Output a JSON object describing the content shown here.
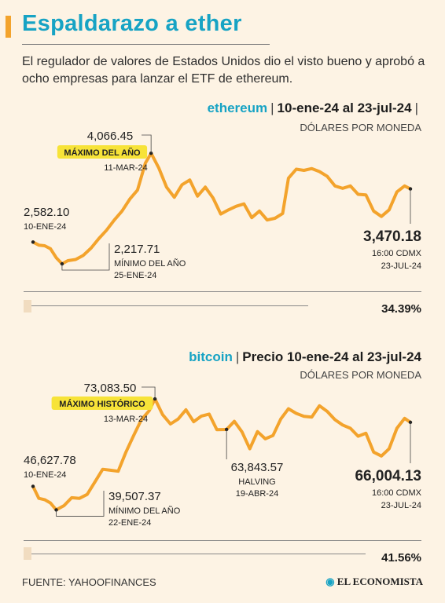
{
  "title": "Espaldarazo a ether",
  "subtitle": "El regulador de valores de Estados Unidos dio el visto bueno y aprobó a ocho empresas para lanzar el ETF de ethereum.",
  "footer": "FUENTE: YAHOOFINANCES",
  "brand": "EL ECONOMISTA",
  "colors": {
    "accent": "#17a3c4",
    "line": "#f3a32c",
    "highlight": "#f7e338"
  },
  "chart_data": [
    {
      "type": "line",
      "asset": "ethereum",
      "period": "10-ene-24 al 23-jul-24",
      "units": "DÓLARES POR MONEDA",
      "x_range": [
        "2024-01-10",
        "2024-07-23"
      ],
      "ylim": [
        2100,
        4200
      ],
      "x": [
        "2024-01-10",
        "2024-01-13",
        "2024-01-16",
        "2024-01-19",
        "2024-01-22",
        "2024-01-25",
        "2024-01-28",
        "2024-02-01",
        "2024-02-05",
        "2024-02-09",
        "2024-02-13",
        "2024-02-17",
        "2024-02-21",
        "2024-02-25",
        "2024-02-29",
        "2024-03-04",
        "2024-03-08",
        "2024-03-11",
        "2024-03-15",
        "2024-03-19",
        "2024-03-23",
        "2024-03-27",
        "2024-03-31",
        "2024-04-04",
        "2024-04-08",
        "2024-04-12",
        "2024-04-16",
        "2024-04-20",
        "2024-04-24",
        "2024-04-28",
        "2024-05-02",
        "2024-05-06",
        "2024-05-10",
        "2024-05-14",
        "2024-05-18",
        "2024-05-21",
        "2024-05-25",
        "2024-05-29",
        "2024-06-02",
        "2024-06-06",
        "2024-06-10",
        "2024-06-14",
        "2024-06-18",
        "2024-06-22",
        "2024-06-26",
        "2024-06-30",
        "2024-07-04",
        "2024-07-08",
        "2024-07-12",
        "2024-07-16",
        "2024-07-20",
        "2024-07-23"
      ],
      "values": [
        2582.1,
        2530,
        2520,
        2470,
        2320,
        2217.71,
        2270,
        2290,
        2360,
        2480,
        2640,
        2780,
        2950,
        3100,
        3300,
        3450,
        3900,
        4066.45,
        3820,
        3500,
        3330,
        3540,
        3620,
        3350,
        3500,
        3320,
        3050,
        3120,
        3180,
        3220,
        2990,
        3100,
        2950,
        2980,
        3060,
        3650,
        3800,
        3780,
        3810,
        3760,
        3680,
        3520,
        3480,
        3520,
        3380,
        3370,
        3100,
        3010,
        3120,
        3420,
        3520,
        3470.18
      ],
      "annotations": [
        {
          "label": "2,582.10",
          "date": "10-ENE-24",
          "x": "2024-01-10",
          "y": 2582.1
        },
        {
          "label": "2,217.71",
          "note": "MÍNIMO DEL AÑO",
          "date": "25-ENE-24",
          "x": "2024-01-25",
          "y": 2217.71
        },
        {
          "label": "4,066.45",
          "note": "MÁXIMO DEL AÑO",
          "date": "11-MAR-24",
          "x": "2024-03-11",
          "y": 4066.45
        },
        {
          "label": "3,470.18",
          "note": "16:00 CDMX",
          "date": "23-JUL-24",
          "x": "2024-07-23",
          "y": 3470.18
        }
      ],
      "change_pct": "34.39%",
      "change_fraction": 0.3439
    },
    {
      "type": "line",
      "asset": "bitcoin",
      "period": "Precio 10-ene-24 al 23-jul-24",
      "units": "DÓLARES POR MONEDA",
      "x_range": [
        "2024-01-10",
        "2024-07-23"
      ],
      "ylim": [
        37000,
        75000
      ],
      "x": [
        "2024-01-10",
        "2024-01-13",
        "2024-01-16",
        "2024-01-19",
        "2024-01-22",
        "2024-01-26",
        "2024-01-30",
        "2024-02-03",
        "2024-02-07",
        "2024-02-11",
        "2024-02-15",
        "2024-02-19",
        "2024-02-23",
        "2024-02-27",
        "2024-03-02",
        "2024-03-06",
        "2024-03-10",
        "2024-03-13",
        "2024-03-17",
        "2024-03-21",
        "2024-03-25",
        "2024-03-29",
        "2024-04-02",
        "2024-04-06",
        "2024-04-10",
        "2024-04-14",
        "2024-04-19",
        "2024-04-23",
        "2024-04-27",
        "2024-05-01",
        "2024-05-05",
        "2024-05-09",
        "2024-05-13",
        "2024-05-17",
        "2024-05-21",
        "2024-05-25",
        "2024-05-29",
        "2024-06-02",
        "2024-06-06",
        "2024-06-10",
        "2024-06-14",
        "2024-06-18",
        "2024-06-22",
        "2024-06-26",
        "2024-06-30",
        "2024-07-04",
        "2024-07-08",
        "2024-07-12",
        "2024-07-16",
        "2024-07-20",
        "2024-07-23"
      ],
      "values": [
        46627.78,
        43000,
        42600,
        41600,
        39507.37,
        40800,
        43200,
        43000,
        44200,
        48000,
        51800,
        51500,
        51200,
        57000,
        62000,
        66800,
        69500,
        73083.5,
        68300,
        65500,
        67000,
        69800,
        66200,
        67900,
        68500,
        63800,
        63843.57,
        66300,
        63100,
        58000,
        63200,
        61000,
        62000,
        67000,
        70100,
        68700,
        67800,
        67600,
        71000,
        69300,
        66800,
        65200,
        64200,
        61800,
        62700,
        57000,
        55800,
        58000,
        64200,
        67200,
        66004.13
      ],
      "annotations": [
        {
          "label": "46,627.78",
          "date": "10-ENE-24",
          "x": "2024-01-10",
          "y": 46627.78
        },
        {
          "label": "39,507.37",
          "note": "MÍNIMO DEL AÑO",
          "date": "22-ENE-24",
          "x": "2024-01-22",
          "y": 39507.37
        },
        {
          "label": "73,083.50",
          "note": "MÁXIMO HISTÓRICO",
          "date": "13-MAR-24",
          "x": "2024-03-13",
          "y": 73083.5
        },
        {
          "label": "63,843.57",
          "note": "HALVING",
          "date": "19-ABR-24",
          "x": "2024-04-19",
          "y": 63843.57
        },
        {
          "label": "66,004.13",
          "note": "16:00 CDMX",
          "date": "23-JUL-24",
          "x": "2024-07-23",
          "y": 66004.13
        }
      ],
      "change_pct": "41.56%",
      "change_fraction": 0.4156
    }
  ]
}
